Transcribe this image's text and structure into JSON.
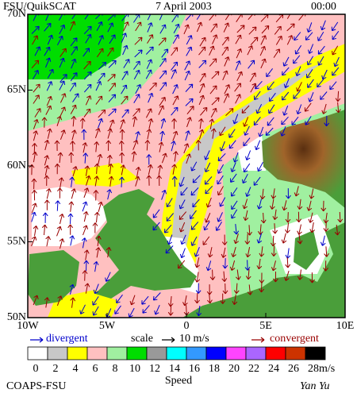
{
  "header": {
    "title": "FSU/QuikSCAT",
    "date": "7 April 2003",
    "time": "00:00"
  },
  "axes": {
    "latitude": [
      "70N",
      "65N",
      "60N",
      "55N",
      "50N"
    ],
    "longitude": [
      "10W",
      "5W",
      "0",
      "5E",
      "10E"
    ]
  },
  "legend": {
    "divergent": "divergent",
    "scale": "scale",
    "scale_value": "10 m/s",
    "convergent": "convergent"
  },
  "colorbar": {
    "labels": [
      0,
      2,
      4,
      6,
      8,
      10,
      12,
      14,
      16,
      18,
      20,
      22,
      24,
      26,
      28
    ],
    "colors": [
      "#ffffff",
      "#c8c8c8",
      "#ffff00",
      "#ffc0c0",
      "#a0f0a0",
      "#00dd00",
      "#999999",
      "#00ffff",
      "#3399ff",
      "#0000ff",
      "#ff44ff",
      "#aa66ff",
      "#ff0000",
      "#cc3300",
      "#000000"
    ],
    "unit": "m/s",
    "title": "Speed"
  },
  "footer": {
    "left": "COAPS-FSU",
    "right": "Yan Yu"
  }
}
